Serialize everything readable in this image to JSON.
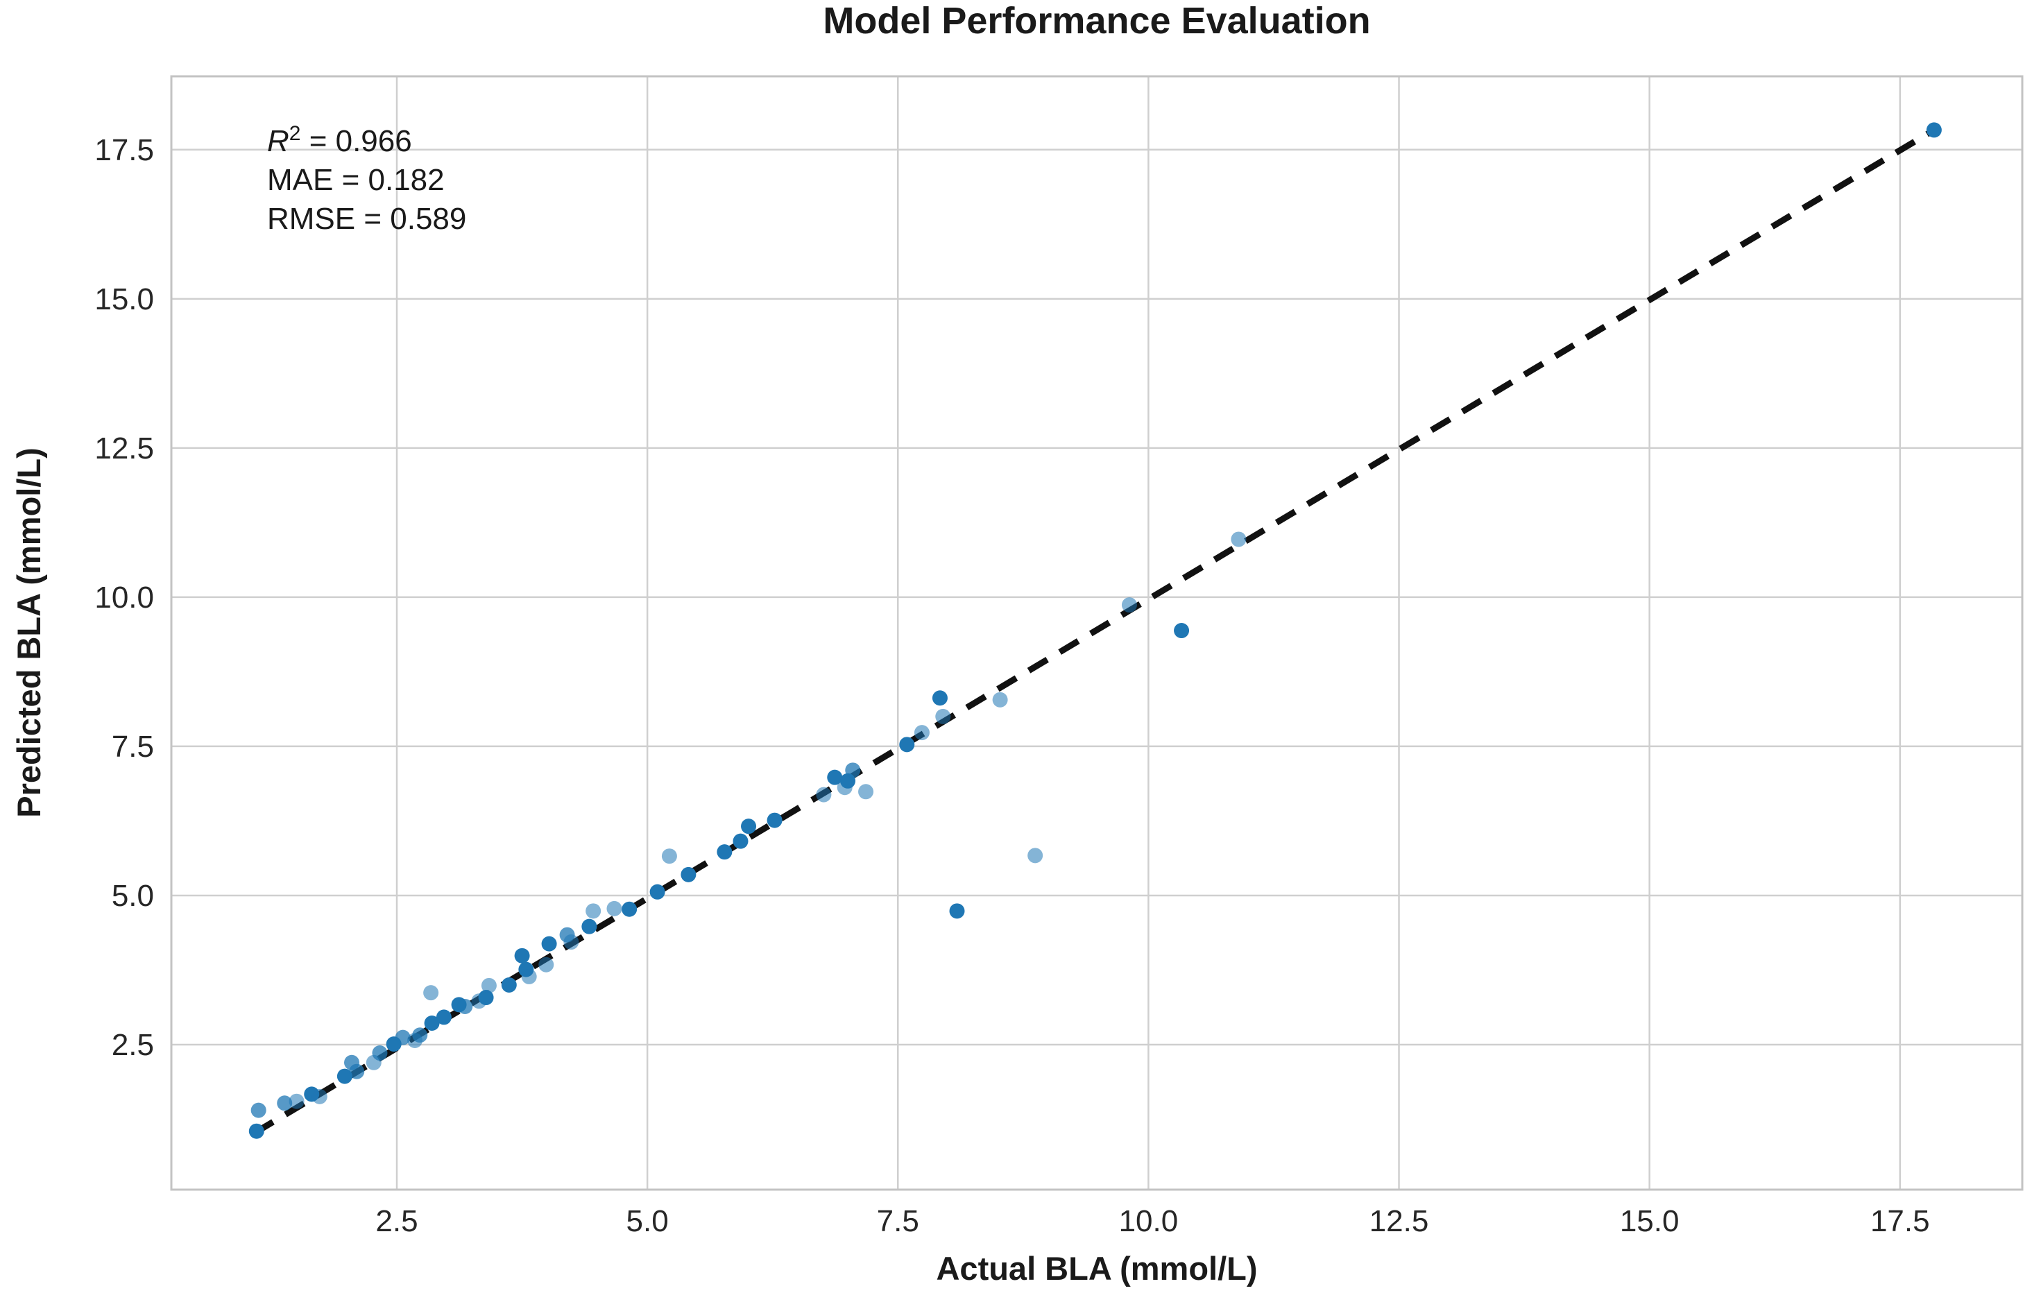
{
  "chart_data": {
    "type": "scatter",
    "title": "Model Performance Evaluation",
    "xlabel": "Actual BLA (mmol/L)",
    "ylabel": "Predicted BLA (mmol/L)",
    "xlim": [
      0.25,
      18.72
    ],
    "ylim": [
      0.07,
      18.73
    ],
    "grid": true,
    "xticks": [
      2.5,
      5.0,
      7.5,
      10.0,
      12.5,
      15.0,
      17.5
    ],
    "yticks": [
      2.5,
      5.0,
      7.5,
      10.0,
      12.5,
      15.0,
      17.5
    ],
    "xtick_labels": [
      "2.5",
      "5.0",
      "7.5",
      "10.0",
      "12.5",
      "15.0",
      "17.5"
    ],
    "ytick_labels": [
      "2.5",
      "5.0",
      "7.5",
      "10.0",
      "12.5",
      "15.0",
      "17.5"
    ],
    "annotation": {
      "r2_symbol": "R",
      "r2_sup": "2",
      "r2_rest": " = 0.966",
      "mae": "MAE = 0.182",
      "rmse": "RMSE = 0.589"
    },
    "metrics": {
      "r2": 0.966,
      "mae": 0.182,
      "rmse": 0.589
    },
    "colors": {
      "point": "#1f77b4",
      "line": "#111111",
      "grid": "#cfcfcf",
      "spine": "#c3c3c3",
      "text": "#1a1a1a"
    },
    "identity_line": {
      "x1": 1.08,
      "y1": 1.02,
      "x2": 17.84,
      "y2": 17.83,
      "style": "dashed"
    },
    "point_opacity": {
      "l": 0.55,
      "m": 0.75,
      "d": 1.0
    },
    "points": [
      [
        1.1,
        1.05,
        "d"
      ],
      [
        1.12,
        1.4,
        "m"
      ],
      [
        1.38,
        1.52,
        "m"
      ],
      [
        1.5,
        1.55,
        "l"
      ],
      [
        1.65,
        1.67,
        "d"
      ],
      [
        1.73,
        1.63,
        "l"
      ],
      [
        1.98,
        1.97,
        "d"
      ],
      [
        2.05,
        2.2,
        "m"
      ],
      [
        2.1,
        2.05,
        "m"
      ],
      [
        2.27,
        2.2,
        "l"
      ],
      [
        2.33,
        2.36,
        "m"
      ],
      [
        2.47,
        2.51,
        "d"
      ],
      [
        2.56,
        2.62,
        "m"
      ],
      [
        2.68,
        2.57,
        "l"
      ],
      [
        2.73,
        2.66,
        "m"
      ],
      [
        2.84,
        3.37,
        "l"
      ],
      [
        2.85,
        2.86,
        "d"
      ],
      [
        2.97,
        2.96,
        "d"
      ],
      [
        3.12,
        3.17,
        "d"
      ],
      [
        3.18,
        3.14,
        "m"
      ],
      [
        3.32,
        3.23,
        "l"
      ],
      [
        3.39,
        3.29,
        "d"
      ],
      [
        3.42,
        3.49,
        "l"
      ],
      [
        3.62,
        3.5,
        "d"
      ],
      [
        3.75,
        3.99,
        "d"
      ],
      [
        3.79,
        3.76,
        "d"
      ],
      [
        3.82,
        3.64,
        "l"
      ],
      [
        3.99,
        3.84,
        "l"
      ],
      [
        4.02,
        4.19,
        "d"
      ],
      [
        4.2,
        4.34,
        "m"
      ],
      [
        4.24,
        4.22,
        "l"
      ],
      [
        4.42,
        4.48,
        "d"
      ],
      [
        4.46,
        4.74,
        "l"
      ],
      [
        4.67,
        4.78,
        "l"
      ],
      [
        4.82,
        4.77,
        "d"
      ],
      [
        5.1,
        5.06,
        "d"
      ],
      [
        5.22,
        5.66,
        "l"
      ],
      [
        5.41,
        5.35,
        "d"
      ],
      [
        5.77,
        5.73,
        "d"
      ],
      [
        5.93,
        5.91,
        "d"
      ],
      [
        6.01,
        6.16,
        "d"
      ],
      [
        6.27,
        6.26,
        "d"
      ],
      [
        6.76,
        6.69,
        "l"
      ],
      [
        6.87,
        6.98,
        "d"
      ],
      [
        6.97,
        6.81,
        "l"
      ],
      [
        7.0,
        6.92,
        "d"
      ],
      [
        7.05,
        7.1,
        "m"
      ],
      [
        7.18,
        6.74,
        "l"
      ],
      [
        7.59,
        7.53,
        "d"
      ],
      [
        7.74,
        7.73,
        "l"
      ],
      [
        7.92,
        8.31,
        "d"
      ],
      [
        7.95,
        8.0,
        "l"
      ],
      [
        8.09,
        4.74,
        "d"
      ],
      [
        8.52,
        8.28,
        "l"
      ],
      [
        8.87,
        5.67,
        "l"
      ],
      [
        9.81,
        9.87,
        "l"
      ],
      [
        10.33,
        9.44,
        "d"
      ],
      [
        10.9,
        10.97,
        "l"
      ],
      [
        17.84,
        17.83,
        "d"
      ]
    ]
  }
}
